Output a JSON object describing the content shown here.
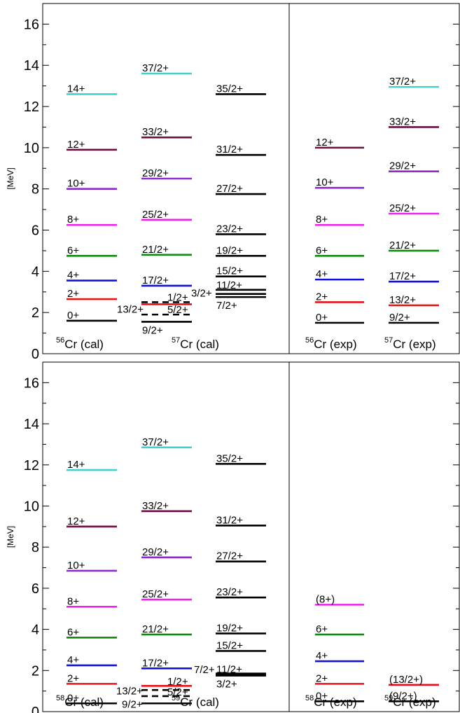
{
  "colors": {
    "black": "#000000",
    "red": "#e8101a",
    "blue": "#1010e0",
    "green": "#118a11",
    "magenta": "#ee22ee",
    "violet": "#8c2ad0",
    "maroon": "#6a1040",
    "cyan": "#40d0d0"
  },
  "chart_data": [
    {
      "type": "level-scheme",
      "ylabel": "[MeV]",
      "ylim": [
        0,
        17
      ],
      "yticks": [
        0,
        2,
        4,
        6,
        8,
        10,
        12,
        14,
        16
      ],
      "ytick_labels": [
        "0",
        "2",
        "4",
        "6",
        "8",
        "10",
        "12",
        "14",
        "16"
      ],
      "nuclei": [
        {
          "mass": "56",
          "symbol": "Cr (cal)"
        },
        {
          "mass": "57",
          "symbol": "Cr (cal)"
        },
        {
          "mass": "56",
          "symbol": "Cr (exp)"
        },
        {
          "mass": "57",
          "symbol": "Cr (exp)"
        }
      ],
      "columns": [
        {
          "levels": [
            {
              "label": "0+",
              "energy": 1.6,
              "color": "black"
            },
            {
              "label": "2+",
              "energy": 2.65,
              "color": "red"
            },
            {
              "label": "4+",
              "energy": 3.55,
              "color": "blue"
            },
            {
              "label": "6+",
              "energy": 4.75,
              "color": "green"
            },
            {
              "label": "8+",
              "energy": 6.25,
              "color": "magenta"
            },
            {
              "label": "10+",
              "energy": 8.0,
              "color": "violet"
            },
            {
              "label": "12+",
              "energy": 9.9,
              "color": "maroon"
            },
            {
              "label": "14+",
              "energy": 12.6,
              "color": "cyan"
            }
          ]
        },
        {
          "levels": [
            {
              "label": "9/2+",
              "energy": 1.55,
              "color": "black"
            },
            {
              "label": "5/2+",
              "energy": 1.9,
              "color": "black",
              "dashed": true
            },
            {
              "label": "13/2+",
              "energy": 2.4,
              "color": "red"
            },
            {
              "label": "1/2+",
              "energy": 2.5,
              "color": "black",
              "dashed": true
            },
            {
              "label": "17/2+",
              "energy": 3.3,
              "color": "blue"
            },
            {
              "label": "21/2+",
              "energy": 4.8,
              "color": "green"
            },
            {
              "label": "25/2+",
              "energy": 6.5,
              "color": "magenta"
            },
            {
              "label": "29/2+",
              "energy": 8.5,
              "color": "violet"
            },
            {
              "label": "33/2+",
              "energy": 10.5,
              "color": "maroon"
            },
            {
              "label": "37/2+",
              "energy": 13.6,
              "color": "cyan"
            }
          ]
        },
        {
          "levels": [
            {
              "label": "7/2+",
              "energy": 2.75,
              "color": "black"
            },
            {
              "label": "3/2+",
              "energy": 2.9,
              "color": "black"
            },
            {
              "label": "11/2+",
              "energy": 3.1,
              "color": "black"
            },
            {
              "label": "15/2+",
              "energy": 3.75,
              "color": "black"
            },
            {
              "label": "19/2+",
              "energy": 4.75,
              "color": "black"
            },
            {
              "label": "23/2+",
              "energy": 5.8,
              "color": "black"
            },
            {
              "label": "27/2+",
              "energy": 7.75,
              "color": "black"
            },
            {
              "label": "31/2+",
              "energy": 9.65,
              "color": "black"
            },
            {
              "label": "35/2+",
              "energy": 12.6,
              "color": "black"
            }
          ]
        },
        {
          "levels": [
            {
              "label": "0+",
              "energy": 1.5,
              "color": "black"
            },
            {
              "label": "2+",
              "energy": 2.5,
              "color": "red"
            },
            {
              "label": "4+",
              "energy": 3.6,
              "color": "blue"
            },
            {
              "label": "6+",
              "energy": 4.75,
              "color": "green"
            },
            {
              "label": "8+",
              "energy": 6.25,
              "color": "magenta"
            },
            {
              "label": "10+",
              "energy": 8.05,
              "color": "violet"
            },
            {
              "label": "12+",
              "energy": 10.0,
              "color": "maroon"
            }
          ]
        },
        {
          "levels": [
            {
              "label": "9/2+",
              "energy": 1.5,
              "color": "black"
            },
            {
              "label": "13/2+",
              "energy": 2.35,
              "color": "red"
            },
            {
              "label": "17/2+",
              "energy": 3.5,
              "color": "blue"
            },
            {
              "label": "21/2+",
              "energy": 5.0,
              "color": "green"
            },
            {
              "label": "25/2+",
              "energy": 6.8,
              "color": "magenta"
            },
            {
              "label": "29/2+",
              "energy": 8.85,
              "color": "violet"
            },
            {
              "label": "33/2+",
              "energy": 11.0,
              "color": "maroon"
            },
            {
              "label": "37/2+",
              "energy": 12.95,
              "color": "cyan"
            }
          ]
        }
      ]
    },
    {
      "type": "level-scheme",
      "ylabel": "[MeV]",
      "ylim": [
        0,
        17
      ],
      "yticks": [
        0,
        2,
        4,
        6,
        8,
        10,
        12,
        14,
        16
      ],
      "ytick_labels": [
        "0",
        "2",
        "4",
        "6",
        "8",
        "10",
        "12",
        "14",
        "16"
      ],
      "nuclei": [
        {
          "mass": "58",
          "symbol": "Cr (cal)"
        },
        {
          "mass": "59",
          "symbol": "Cr (cal)"
        },
        {
          "mass": "58",
          "symbol": "Cr (exp)"
        },
        {
          "mass": "59",
          "symbol": "Cr (exp)"
        }
      ],
      "columns": [
        {
          "levels": [
            {
              "label": "0+",
              "energy": 0.4,
              "color": "black"
            },
            {
              "label": "2+",
              "energy": 1.35,
              "color": "red"
            },
            {
              "label": "4+",
              "energy": 2.25,
              "color": "blue"
            },
            {
              "label": "6+",
              "energy": 3.6,
              "color": "green"
            },
            {
              "label": "8+",
              "energy": 5.1,
              "color": "magenta"
            },
            {
              "label": "10+",
              "energy": 6.85,
              "color": "violet"
            },
            {
              "label": "12+",
              "energy": 9.0,
              "color": "maroon"
            },
            {
              "label": "14+",
              "energy": 11.75,
              "color": "cyan"
            }
          ]
        },
        {
          "levels": [
            {
              "label": "9/2+",
              "energy": 0.4,
              "color": "black"
            },
            {
              "label": "5/2+",
              "energy": 0.75,
              "color": "black",
              "dashed": true
            },
            {
              "label": "1/2+",
              "energy": 1.05,
              "color": "black",
              "dashed": true
            },
            {
              "label": "13/2+",
              "energy": 1.25,
              "color": "red"
            },
            {
              "label": "17/2+",
              "energy": 2.1,
              "color": "blue"
            },
            {
              "label": "21/2+",
              "energy": 3.75,
              "color": "green"
            },
            {
              "label": "25/2+",
              "energy": 5.45,
              "color": "magenta"
            },
            {
              "label": "29/2+",
              "energy": 7.5,
              "color": "violet"
            },
            {
              "label": "33/2+",
              "energy": 9.75,
              "color": "maroon"
            },
            {
              "label": "37/2+",
              "energy": 12.85,
              "color": "cyan"
            }
          ]
        },
        {
          "levels": [
            {
              "label": "3/2+",
              "energy": 1.75,
              "color": "black"
            },
            {
              "label": "7/2+",
              "energy": 1.8,
              "color": "black"
            },
            {
              "label": "11/2+",
              "energy": 1.85,
              "color": "black"
            },
            {
              "label": "15/2+",
              "energy": 2.95,
              "color": "black"
            },
            {
              "label": "19/2+",
              "energy": 3.8,
              "color": "black"
            },
            {
              "label": "23/2+",
              "energy": 5.55,
              "color": "black"
            },
            {
              "label": "27/2+",
              "energy": 7.3,
              "color": "black"
            },
            {
              "label": "31/2+",
              "energy": 9.05,
              "color": "black"
            },
            {
              "label": "35/2+",
              "energy": 12.05,
              "color": "black"
            }
          ]
        },
        {
          "levels": [
            {
              "label": "0+",
              "energy": 0.5,
              "color": "black"
            },
            {
              "label": "2+",
              "energy": 1.35,
              "color": "red"
            },
            {
              "label": "4+",
              "energy": 2.45,
              "color": "blue"
            },
            {
              "label": "6+",
              "energy": 3.75,
              "color": "green"
            },
            {
              "label": "(8+)",
              "energy": 5.2,
              "color": "magenta"
            }
          ]
        },
        {
          "levels": [
            {
              "label": "(9/2+)",
              "energy": 0.5,
              "color": "black"
            },
            {
              "label": "(13/2+)",
              "energy": 1.3,
              "color": "red"
            }
          ]
        }
      ]
    }
  ]
}
